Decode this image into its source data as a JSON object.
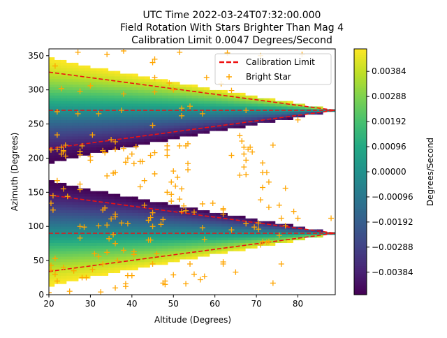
{
  "chart_data": {
    "type": "heatmap",
    "title_lines": [
      "UTC Time 2022-03-24T07:32:00.000",
      "Field Rotation With Stars Brighter Than Mag 4",
      "Calibration Limit 0.0047 Degrees/Second"
    ],
    "xlabel": "Altitude (Degrees)",
    "ylabel": "Azimuth (Degrees)",
    "xlim": [
      20,
      89
    ],
    "ylim": [
      0,
      360
    ],
    "xticks": [
      20,
      30,
      40,
      50,
      60,
      70,
      80
    ],
    "yticks": [
      0,
      50,
      100,
      150,
      200,
      250,
      300,
      350
    ],
    "colormap": "viridis",
    "colorbar": {
      "label": "Degrees/Second",
      "range": [
        -0.0047,
        0.0047
      ],
      "ticks": [
        "0.00384",
        "0.00288",
        "0.00192",
        "0.00096",
        "0.00000",
        "−0.00096",
        "−0.00192",
        "−0.00288",
        "−0.00384"
      ],
      "tick_values": [
        0.00384,
        0.00288,
        0.00192,
        0.00096,
        0.0,
        -0.00096,
        -0.00192,
        -0.00288,
        -0.00384
      ]
    },
    "calibration_limit": 0.0047,
    "limit_lines": [
      {
        "points": [
          [
            20,
            326
          ],
          [
            89,
            270
          ]
        ]
      },
      {
        "points": [
          [
            20,
            270
          ],
          [
            89,
            270
          ]
        ]
      },
      {
        "points": [
          [
            20,
            214
          ],
          [
            89,
            270
          ]
        ]
      },
      {
        "points": [
          [
            20,
            146
          ],
          [
            89,
            90
          ]
        ]
      },
      {
        "points": [
          [
            20,
            90
          ],
          [
            89,
            90
          ]
        ]
      },
      {
        "points": [
          [
            20,
            34
          ],
          [
            89,
            90
          ]
        ]
      }
    ],
    "legend": {
      "placement": "top-right",
      "entries": [
        {
          "label": "Calibration Limit",
          "color": "#ee1111",
          "style": "dashed-line"
        },
        {
          "label": "Bright Star",
          "color": "#ffa500",
          "style": "plus-marker"
        }
      ]
    },
    "stars": [
      [
        21.5,
        335
      ],
      [
        27,
        355
      ],
      [
        34,
        352
      ],
      [
        38,
        357
      ],
      [
        45.5,
        345
      ],
      [
        45,
        340
      ],
      [
        51.5,
        355
      ],
      [
        63,
        354
      ],
      [
        71,
        350
      ],
      [
        81,
        352
      ],
      [
        22,
        268
      ],
      [
        23,
        302
      ],
      [
        27.5,
        298
      ],
      [
        30,
        306
      ],
      [
        38,
        294
      ],
      [
        45.5,
        318
      ],
      [
        45.5,
        297
      ],
      [
        50,
        300
      ],
      [
        49,
        310
      ],
      [
        58,
        318
      ],
      [
        61.5,
        309
      ],
      [
        64,
        299
      ],
      [
        52,
        273
      ],
      [
        54,
        276
      ],
      [
        57,
        265
      ],
      [
        37.5,
        270
      ],
      [
        27,
        265
      ],
      [
        32,
        265
      ],
      [
        45,
        248
      ],
      [
        52,
        262
      ],
      [
        67.5,
        270
      ],
      [
        80,
        256
      ],
      [
        66,
        233
      ],
      [
        66.5,
        225
      ],
      [
        22,
        234
      ],
      [
        20.5,
        212
      ],
      [
        22,
        213
      ],
      [
        23,
        216
      ],
      [
        23.5,
        209
      ],
      [
        24,
        219
      ],
      [
        24,
        203
      ],
      [
        23,
        206
      ],
      [
        23.5,
        211
      ],
      [
        27.5,
        205
      ],
      [
        27.5,
        210
      ],
      [
        30,
        202
      ],
      [
        30,
        197
      ],
      [
        30.5,
        234
      ],
      [
        28,
        218
      ],
      [
        33,
        211
      ],
      [
        35,
        227
      ],
      [
        36,
        224
      ],
      [
        33.5,
        208
      ],
      [
        36,
        213
      ],
      [
        40,
        206
      ],
      [
        41,
        217
      ],
      [
        42,
        195
      ],
      [
        42.5,
        195
      ],
      [
        44.5,
        204
      ],
      [
        45.5,
        208
      ],
      [
        48.5,
        212
      ],
      [
        48.5,
        218
      ],
      [
        48.5,
        204
      ],
      [
        51.5,
        218
      ],
      [
        53,
        218
      ],
      [
        53.5,
        221
      ],
      [
        38,
        214
      ],
      [
        39,
        200
      ],
      [
        38.5,
        194
      ],
      [
        40.5,
        192
      ],
      [
        64,
        204
      ],
      [
        67,
        206
      ],
      [
        67,
        216
      ],
      [
        68,
        213
      ],
      [
        68.5,
        216
      ],
      [
        69,
        209
      ],
      [
        67,
        187
      ],
      [
        67.5,
        197
      ],
      [
        71.5,
        193
      ],
      [
        71.5,
        179
      ],
      [
        72.5,
        179
      ],
      [
        74,
        219
      ],
      [
        75.5,
        131
      ],
      [
        71,
        139
      ],
      [
        22,
        167
      ],
      [
        23.5,
        155
      ],
      [
        24.5,
        144
      ],
      [
        21,
        145
      ],
      [
        27.5,
        162
      ],
      [
        27.5,
        154
      ],
      [
        35.5,
        178
      ],
      [
        34,
        174
      ],
      [
        36,
        179
      ],
      [
        42,
        158
      ],
      [
        43,
        167
      ],
      [
        45.5,
        177
      ],
      [
        48.5,
        150
      ],
      [
        49.5,
        165
      ],
      [
        50,
        181
      ],
      [
        49.5,
        147
      ],
      [
        51,
        172
      ],
      [
        52,
        155
      ],
      [
        52.5,
        130
      ],
      [
        53.5,
        192
      ],
      [
        53.5,
        183
      ],
      [
        50.5,
        159
      ],
      [
        51.5,
        140
      ],
      [
        57,
        133
      ],
      [
        59.5,
        134
      ],
      [
        62,
        126
      ],
      [
        66,
        175
      ],
      [
        67.5,
        176
      ],
      [
        71.5,
        157
      ],
      [
        73,
        165
      ],
      [
        77,
        156
      ],
      [
        79,
        122
      ],
      [
        80,
        112
      ],
      [
        88,
        112
      ],
      [
        20.5,
        134
      ],
      [
        21,
        124
      ],
      [
        28.5,
        99
      ],
      [
        32,
        101
      ],
      [
        33,
        124
      ],
      [
        33.5,
        127
      ],
      [
        34,
        102
      ],
      [
        35,
        111
      ],
      [
        36,
        118
      ],
      [
        36,
        114
      ],
      [
        37.5,
        105
      ],
      [
        39,
        104
      ],
      [
        43,
        131
      ],
      [
        45,
        120
      ],
      [
        45,
        100
      ],
      [
        44.5,
        113
      ],
      [
        44,
        109
      ],
      [
        44.5,
        80
      ],
      [
        47,
        103
      ],
      [
        47.5,
        110
      ],
      [
        49.5,
        137
      ],
      [
        52,
        122
      ],
      [
        53,
        123
      ],
      [
        55,
        121
      ],
      [
        57,
        98
      ],
      [
        57.5,
        81
      ],
      [
        62,
        124
      ],
      [
        62,
        118
      ],
      [
        67.5,
        104
      ],
      [
        69.5,
        99
      ],
      [
        70.5,
        96
      ],
      [
        71,
        73
      ],
      [
        71.5,
        78
      ],
      [
        72.5,
        77
      ],
      [
        75.5,
        87
      ],
      [
        76,
        112
      ],
      [
        77,
        101
      ],
      [
        73,
        128
      ],
      [
        20.5,
        43
      ],
      [
        21.5,
        53
      ],
      [
        20.5,
        36
      ],
      [
        21.5,
        30
      ],
      [
        23.5,
        40
      ],
      [
        27.5,
        100
      ],
      [
        27.5,
        83
      ],
      [
        28,
        25
      ],
      [
        29,
        25
      ],
      [
        30.5,
        37
      ],
      [
        32,
        56
      ],
      [
        32.5,
        4
      ],
      [
        34.5,
        82
      ],
      [
        34,
        62
      ],
      [
        35.5,
        88
      ],
      [
        36,
        75
      ],
      [
        36.5,
        50
      ],
      [
        38,
        65
      ],
      [
        38.5,
        16
      ],
      [
        38.5,
        12
      ],
      [
        39,
        28
      ],
      [
        40.5,
        59
      ],
      [
        40.5,
        63
      ],
      [
        44,
        80
      ],
      [
        45,
        45
      ],
      [
        47.5,
        17
      ],
      [
        48,
        20
      ],
      [
        48,
        15
      ],
      [
        53,
        16
      ],
      [
        54,
        45
      ],
      [
        56.5,
        22
      ],
      [
        57.5,
        27
      ],
      [
        62,
        45
      ],
      [
        62,
        48
      ],
      [
        64,
        95
      ],
      [
        65,
        33
      ],
      [
        70.5,
        105
      ],
      [
        73,
        78
      ],
      [
        74,
        17
      ],
      [
        76,
        45
      ],
      [
        20,
        3
      ],
      [
        22,
        20
      ],
      [
        25,
        5
      ],
      [
        36,
        10
      ],
      [
        40,
        28
      ],
      [
        26,
        35
      ],
      [
        31,
        60
      ],
      [
        33,
        45
      ],
      [
        46,
        60
      ],
      [
        50,
        29
      ],
      [
        55,
        30
      ]
    ]
  }
}
